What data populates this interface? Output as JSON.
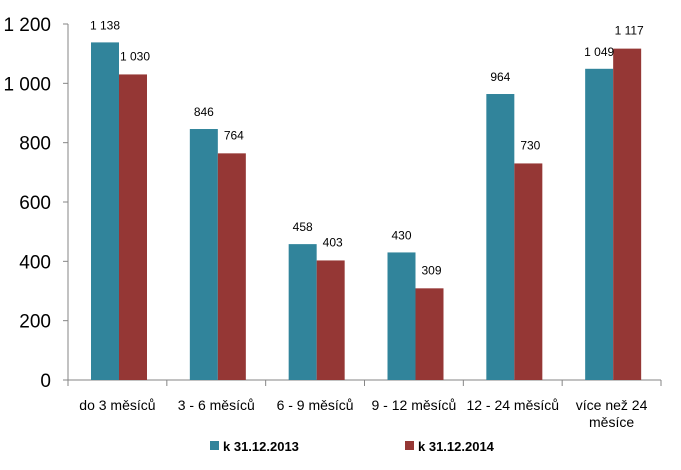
{
  "chart_data": {
    "type": "bar",
    "categories": [
      [
        "do 3 měsíců"
      ],
      [
        "3 - 6 měsíců"
      ],
      [
        "6 - 9 měsíců"
      ],
      [
        "9 - 12 měsíců"
      ],
      [
        "12 - 24 měsíců"
      ],
      [
        "více než 24",
        "měsíce"
      ]
    ],
    "series": [
      {
        "name": "k 31.12.2013",
        "color": "#31849B",
        "values": [
          1138,
          846,
          458,
          430,
          964,
          1049
        ],
        "labels": [
          "1 138",
          "846",
          "458",
          "430",
          "964",
          "1 049"
        ]
      },
      {
        "name": "k 31.12.2014",
        "color": "#953735",
        "values": [
          1030,
          764,
          403,
          309,
          730,
          1117
        ],
        "labels": [
          "1 030",
          "764",
          "403",
          "309",
          "730",
          "1 117"
        ]
      }
    ],
    "yticks": [
      0,
      200,
      400,
      600,
      800,
      1000,
      1200
    ],
    "ytick_labels": [
      "0",
      "200",
      "400",
      "600",
      "800",
      "1 000",
      "1 200"
    ],
    "ylim": [
      0,
      1200
    ],
    "title": "",
    "xlabel": "",
    "ylabel": "",
    "grid": false,
    "legend": "bottom"
  }
}
